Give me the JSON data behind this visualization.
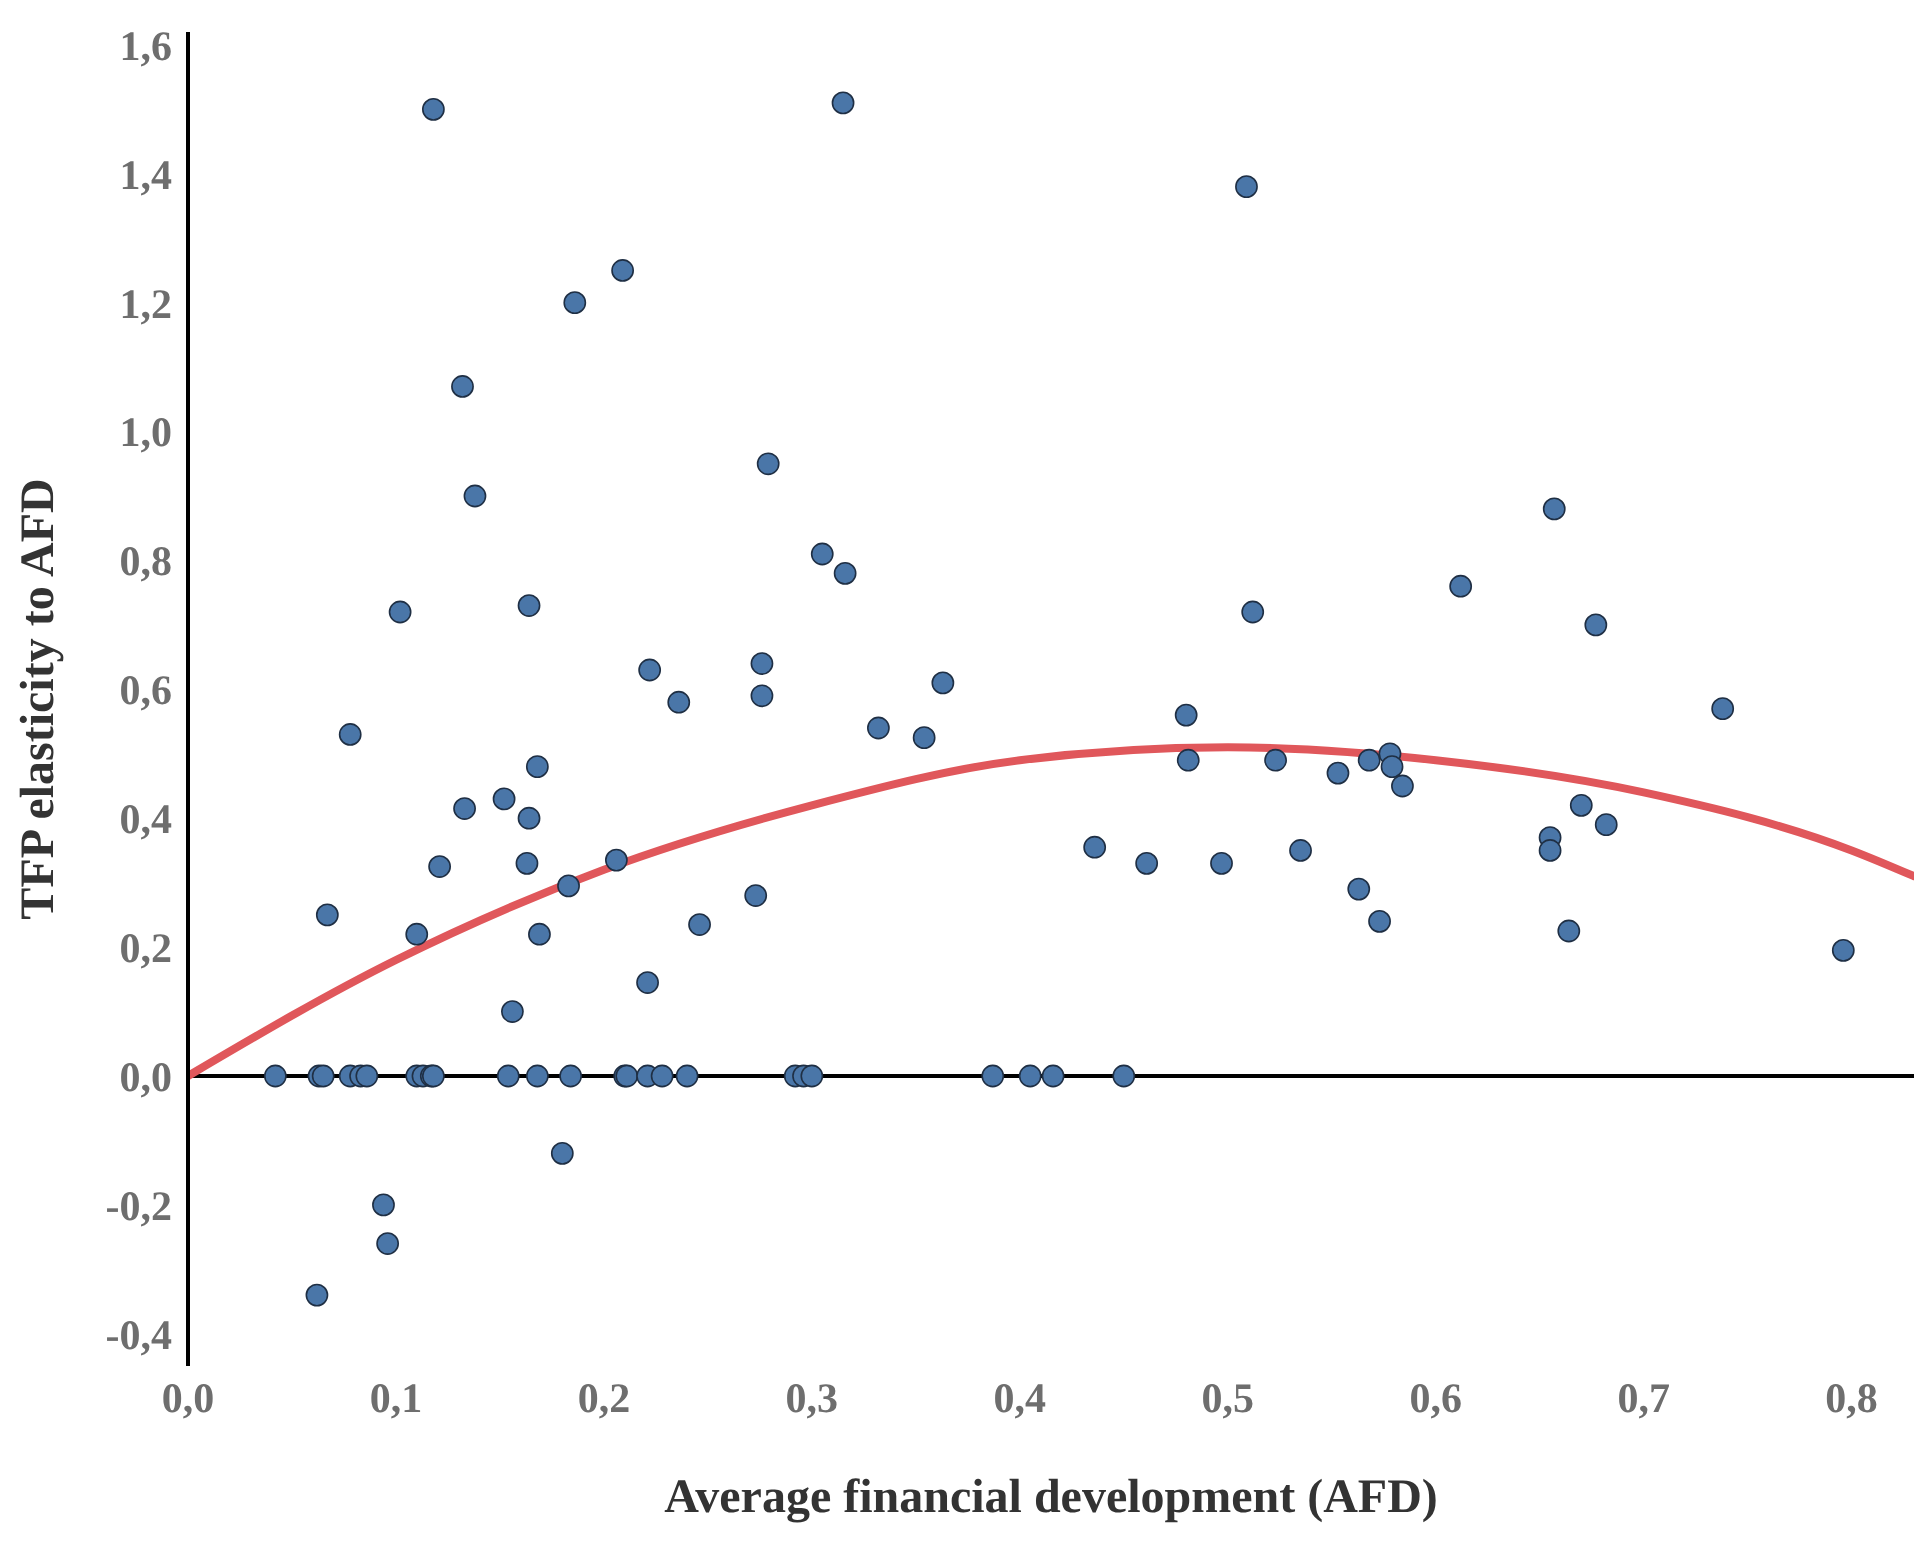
{
  "chart_data": {
    "type": "scatter",
    "xlabel": "Average financial development (AFD)",
    "ylabel": "TFP elasticity to AFD",
    "xlim": [
      0,
      0.83
    ],
    "ylim": [
      -0.45,
      1.62
    ],
    "xticks": [
      {
        "value": 0,
        "label": "0,0"
      },
      {
        "value": 0.1,
        "label": "0,1"
      },
      {
        "value": 0.2,
        "label": "0,2"
      },
      {
        "value": 0.3,
        "label": "0,3"
      },
      {
        "value": 0.4,
        "label": "0,4"
      },
      {
        "value": 0.5,
        "label": "0,5"
      },
      {
        "value": 0.6,
        "label": "0,6"
      },
      {
        "value": 0.7,
        "label": "0,7"
      },
      {
        "value": 0.8,
        "label": "0,8"
      }
    ],
    "yticks": [
      {
        "value": -0.4,
        "label": "-0,4"
      },
      {
        "value": -0.2,
        "label": "-0,2"
      },
      {
        "value": 0,
        "label": "0,0"
      },
      {
        "value": 0.2,
        "label": "0,2"
      },
      {
        "value": 0.4,
        "label": "0,4"
      },
      {
        "value": 0.6,
        "label": "0,6"
      },
      {
        "value": 0.8,
        "label": "0,8"
      },
      {
        "value": 1,
        "label": "1,0"
      },
      {
        "value": 1.2,
        "label": "1,2"
      },
      {
        "value": 1.4,
        "label": "1,4"
      },
      {
        "value": 1.6,
        "label": "1,6"
      }
    ],
    "grid": false,
    "legend": false,
    "ref_lines": [
      {
        "axis": "y",
        "value": 0,
        "color": "#000000"
      }
    ],
    "series": [
      {
        "marker": "circle",
        "color": "#4a76a8",
        "x": [
          0.118,
          0.315,
          0.509,
          0.209,
          0.186,
          0.132,
          0.138,
          0.279,
          0.102,
          0.164,
          0.222,
          0.236,
          0.276,
          0.276,
          0.078,
          0.168,
          0.305,
          0.316,
          0.363,
          0.332,
          0.354,
          0.512,
          0.48,
          0.481,
          0.523,
          0.553,
          0.657,
          0.612,
          0.677,
          0.738,
          0.568,
          0.578,
          0.579,
          0.584,
          0.67,
          0.682,
          0.655,
          0.655,
          0.436,
          0.461,
          0.497,
          0.535,
          0.563,
          0.573,
          0.664,
          0.796,
          0.133,
          0.152,
          0.164,
          0.121,
          0.163,
          0.206,
          0.183,
          0.067,
          0.11,
          0.169,
          0.273,
          0.246,
          0.221,
          0.156,
          0.18,
          0.094,
          0.096,
          0.062,
          0.042,
          0.063,
          0.065,
          0.078,
          0.083,
          0.086,
          0.11,
          0.113,
          0.117,
          0.118,
          0.154,
          0.168,
          0.184,
          0.21,
          0.211,
          0.221,
          0.228,
          0.24,
          0.292,
          0.296,
          0.3,
          0.387,
          0.405,
          0.416,
          0.45
        ],
        "values": [
          1.5,
          1.51,
          1.38,
          1.25,
          1.2,
          1.07,
          0.9,
          0.95,
          0.72,
          0.73,
          0.63,
          0.58,
          0.64,
          0.59,
          0.53,
          0.48,
          0.81,
          0.78,
          0.61,
          0.54,
          0.525,
          0.72,
          0.56,
          0.49,
          0.49,
          0.47,
          0.88,
          0.76,
          0.7,
          0.57,
          0.49,
          0.5,
          0.48,
          0.45,
          0.42,
          0.39,
          0.37,
          0.35,
          0.355,
          0.33,
          0.33,
          0.35,
          0.29,
          0.24,
          0.225,
          0.195,
          0.415,
          0.43,
          0.4,
          0.325,
          0.33,
          0.335,
          0.295,
          0.25,
          0.22,
          0.22,
          0.28,
          0.235,
          0.145,
          0.1,
          -0.12,
          -0.2,
          -0.26,
          -0.34,
          0,
          0,
          0,
          0,
          0,
          0,
          0,
          0,
          0,
          0,
          0,
          0,
          0,
          0,
          0,
          0,
          0,
          0,
          0,
          0,
          0,
          0,
          0,
          0,
          0
        ]
      },
      {
        "type": "line",
        "marker": "none",
        "color": "#e0575b",
        "x": [
          0,
          0.1,
          0.2,
          0.3,
          0.4,
          0.5,
          0.6,
          0.7,
          0.8,
          0.83
        ],
        "values": [
          0,
          0.18,
          0.32,
          0.42,
          0.49,
          0.51,
          0.49,
          0.44,
          0.35,
          0.31
        ]
      }
    ]
  }
}
